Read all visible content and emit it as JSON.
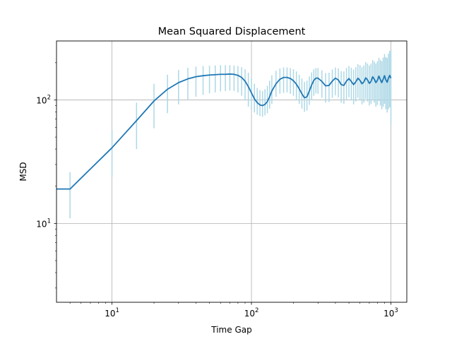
{
  "chart_data": {
    "type": "line",
    "title": "Mean Squared Displacement",
    "xlabel": "Time Gap",
    "ylabel": "MSD",
    "xscale": "log",
    "yscale": "log",
    "xlim": [
      4,
      1300
    ],
    "ylim": [
      2.3,
      300
    ],
    "grid": "major",
    "x_tick_labels": [
      {
        "base": "10",
        "exp": "1",
        "value": 10
      },
      {
        "base": "10",
        "exp": "2",
        "value": 100
      },
      {
        "base": "10",
        "exp": "3",
        "value": 1000
      }
    ],
    "y_tick_labels": [
      {
        "base": "10",
        "exp": "1",
        "value": 10
      },
      {
        "base": "10",
        "exp": "2",
        "value": 100
      }
    ],
    "colors": {
      "line": "#1f77b4",
      "errorbar": "#add8e6",
      "grid": "#b0b0b0"
    },
    "series": [
      {
        "x": [
          1,
          5,
          10,
          15,
          20,
          25,
          30,
          35,
          40,
          45,
          50,
          55,
          60,
          65,
          70,
          75,
          80,
          85,
          90,
          95,
          100,
          105,
          110,
          115,
          120,
          125,
          130,
          135,
          140,
          150,
          160,
          170,
          180,
          190,
          200,
          210,
          220,
          230,
          240,
          250,
          260,
          270,
          280,
          290,
          300,
          320,
          340,
          360,
          380,
          400,
          420,
          440,
          460,
          480,
          500,
          520,
          540,
          560,
          580,
          600,
          620,
          640,
          660,
          680,
          700,
          720,
          740,
          760,
          780,
          800,
          820,
          840,
          860,
          880,
          900,
          920,
          940,
          960,
          980,
          1000
        ],
        "y": [
          19,
          19,
          41,
          68,
          98,
          122,
          138,
          148,
          154,
          157,
          159,
          160,
          161,
          161,
          162,
          161,
          158,
          152,
          142,
          128,
          114,
          102,
          95,
          91,
          90,
          92,
          97,
          106,
          118,
          135,
          147,
          152,
          152,
          149,
          143,
          134,
          123,
          112,
          104,
          106,
          118,
          132,
          144,
          150,
          150,
          141,
          130,
          131,
          142,
          150,
          145,
          133,
          131,
          142,
          149,
          141,
          133,
          140,
          150,
          144,
          135,
          140,
          151,
          145,
          136,
          141,
          154,
          147,
          138,
          144,
          156,
          146,
          138,
          147,
          157,
          145,
          139,
          150,
          158,
          150
        ],
        "err_low": [
          19,
          11,
          24,
          40,
          59,
          78,
          92,
          100,
          106,
          110,
          113,
          115,
          117,
          118,
          119,
          118,
          115,
          108,
          99,
          88,
          83,
          79,
          76,
          74,
          73,
          75,
          78,
          85,
          93,
          106,
          112,
          114,
          115,
          112,
          108,
          101,
          93,
          85,
          80,
          82,
          91,
          100,
          108,
          113,
          112,
          104,
          95,
          96,
          104,
          109,
          105,
          95,
          93,
          101,
          105,
          99,
          92,
          97,
          104,
          99,
          92,
          95,
          102,
          97,
          90,
          93,
          101,
          95,
          88,
          91,
          98,
          90,
          84,
          88,
          93,
          84,
          79,
          84,
          87,
          63
        ],
        "err_high": [
          19,
          26,
          57,
          95,
          135,
          160,
          175,
          182,
          186,
          188,
          189,
          190,
          191,
          191,
          191,
          190,
          188,
          184,
          177,
          166,
          150,
          135,
          125,
          120,
          118,
          122,
          130,
          143,
          158,
          172,
          180,
          183,
          183,
          181,
          177,
          170,
          160,
          149,
          140,
          143,
          155,
          167,
          177,
          181,
          181,
          174,
          165,
          166,
          176,
          183,
          180,
          171,
          170,
          181,
          188,
          182,
          176,
          184,
          195,
          191,
          184,
          190,
          202,
          197,
          190,
          196,
          210,
          204,
          197,
          205,
          219,
          211,
          206,
          220,
          235,
          222,
          219,
          237,
          250,
          252
        ]
      }
    ]
  }
}
